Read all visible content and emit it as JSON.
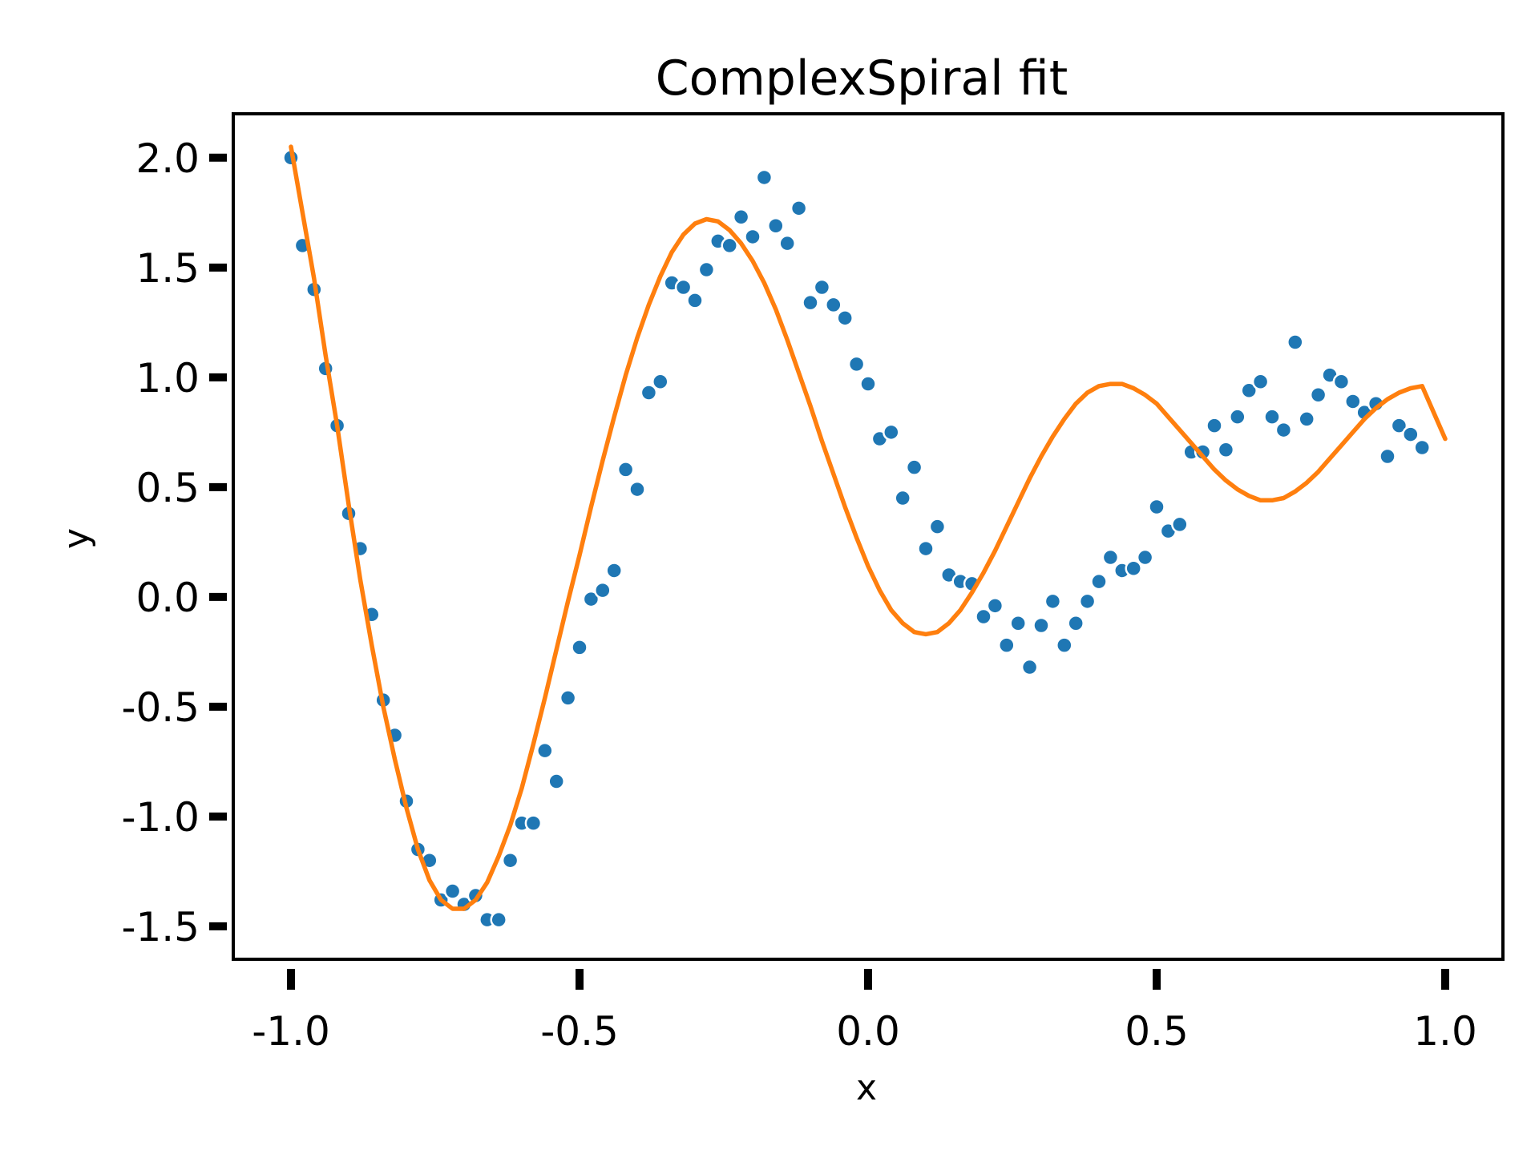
{
  "chart_data": {
    "type": "scatter",
    "title": "ComplexSpiral fit",
    "xlabel": "x",
    "ylabel": "y",
    "xlim": [
      -1.1,
      1.1
    ],
    "ylim": [
      -1.65,
      2.2
    ],
    "grid": false,
    "legend": "none",
    "xticks": [
      -1.0,
      -0.5,
      0.0,
      0.5,
      1.0
    ],
    "xtick_labels": [
      "-1.0",
      "-0.5",
      "0.0",
      "0.5",
      "1.0"
    ],
    "yticks": [
      -1.5,
      -1.0,
      -0.5,
      0.0,
      0.5,
      1.0,
      1.5,
      2.0
    ],
    "ytick_labels": [
      "-1.5",
      "-1.0",
      "-0.5",
      "0.0",
      "0.5",
      "1.0",
      "1.5",
      "2.0"
    ],
    "series": [
      {
        "kind": "scatter",
        "color": "#1f77b4",
        "points": [
          [
            -1.0,
            2.0
          ],
          [
            -0.98,
            1.6
          ],
          [
            -0.96,
            1.4
          ],
          [
            -0.94,
            1.04
          ],
          [
            -0.92,
            0.78
          ],
          [
            -0.9,
            0.38
          ],
          [
            -0.88,
            0.22
          ],
          [
            -0.86,
            -0.08
          ],
          [
            -0.84,
            -0.47
          ],
          [
            -0.82,
            -0.63
          ],
          [
            -0.8,
            -0.93
          ],
          [
            -0.78,
            -1.15
          ],
          [
            -0.76,
            -1.2
          ],
          [
            -0.74,
            -1.38
          ],
          [
            -0.72,
            -1.34
          ],
          [
            -0.7,
            -1.4
          ],
          [
            -0.68,
            -1.36
          ],
          [
            -0.66,
            -1.47
          ],
          [
            -0.64,
            -1.47
          ],
          [
            -0.62,
            -1.2
          ],
          [
            -0.6,
            -1.03
          ],
          [
            -0.58,
            -1.03
          ],
          [
            -0.56,
            -0.7
          ],
          [
            -0.54,
            -0.84
          ],
          [
            -0.52,
            -0.46
          ],
          [
            -0.5,
            -0.23
          ],
          [
            -0.48,
            -0.01
          ],
          [
            -0.46,
            0.03
          ],
          [
            -0.44,
            0.12
          ],
          [
            -0.42,
            0.58
          ],
          [
            -0.4,
            0.49
          ],
          [
            -0.38,
            0.93
          ],
          [
            -0.36,
            0.98
          ],
          [
            -0.34,
            1.43
          ],
          [
            -0.32,
            1.41
          ],
          [
            -0.3,
            1.35
          ],
          [
            -0.28,
            1.49
          ],
          [
            -0.26,
            1.62
          ],
          [
            -0.24,
            1.6
          ],
          [
            -0.22,
            1.73
          ],
          [
            -0.2,
            1.64
          ],
          [
            -0.18,
            1.91
          ],
          [
            -0.16,
            1.69
          ],
          [
            -0.14,
            1.61
          ],
          [
            -0.12,
            1.77
          ],
          [
            -0.1,
            1.34
          ],
          [
            -0.08,
            1.41
          ],
          [
            -0.06,
            1.33
          ],
          [
            -0.04,
            1.27
          ],
          [
            -0.02,
            1.06
          ],
          [
            0.0,
            0.97
          ],
          [
            0.02,
            0.72
          ],
          [
            0.04,
            0.75
          ],
          [
            0.06,
            0.45
          ],
          [
            0.08,
            0.59
          ],
          [
            0.1,
            0.22
          ],
          [
            0.12,
            0.32
          ],
          [
            0.14,
            0.1
          ],
          [
            0.16,
            0.07
          ],
          [
            0.18,
            0.06
          ],
          [
            0.2,
            -0.09
          ],
          [
            0.22,
            -0.04
          ],
          [
            0.24,
            -0.22
          ],
          [
            0.26,
            -0.12
          ],
          [
            0.28,
            -0.32
          ],
          [
            0.3,
            -0.13
          ],
          [
            0.32,
            -0.02
          ],
          [
            0.34,
            -0.22
          ],
          [
            0.36,
            -0.12
          ],
          [
            0.38,
            -0.02
          ],
          [
            0.4,
            0.07
          ],
          [
            0.42,
            0.18
          ],
          [
            0.44,
            0.12
          ],
          [
            0.46,
            0.13
          ],
          [
            0.48,
            0.18
          ],
          [
            0.5,
            0.41
          ],
          [
            0.52,
            0.3
          ],
          [
            0.54,
            0.33
          ],
          [
            0.56,
            0.66
          ],
          [
            0.58,
            0.66
          ],
          [
            0.6,
            0.78
          ],
          [
            0.62,
            0.67
          ],
          [
            0.64,
            0.82
          ],
          [
            0.66,
            0.94
          ],
          [
            0.68,
            0.98
          ],
          [
            0.7,
            0.82
          ],
          [
            0.72,
            0.76
          ],
          [
            0.74,
            1.16
          ],
          [
            0.76,
            0.81
          ],
          [
            0.78,
            0.92
          ],
          [
            0.8,
            1.01
          ],
          [
            0.82,
            0.98
          ],
          [
            0.84,
            0.89
          ],
          [
            0.86,
            0.84
          ],
          [
            0.88,
            0.88
          ],
          [
            0.9,
            0.64
          ],
          [
            0.92,
            0.78
          ],
          [
            0.94,
            0.74
          ],
          [
            0.96,
            0.68
          ]
        ]
      },
      {
        "kind": "line",
        "color": "#ff7f0e",
        "points": [
          [
            -1.0,
            2.05
          ],
          [
            -0.98,
            1.75
          ],
          [
            -0.96,
            1.45
          ],
          [
            -0.94,
            1.1
          ],
          [
            -0.92,
            0.78
          ],
          [
            -0.9,
            0.42
          ],
          [
            -0.88,
            0.08
          ],
          [
            -0.86,
            -0.22
          ],
          [
            -0.84,
            -0.5
          ],
          [
            -0.82,
            -0.74
          ],
          [
            -0.8,
            -0.96
          ],
          [
            -0.78,
            -1.15
          ],
          [
            -0.76,
            -1.29
          ],
          [
            -0.74,
            -1.38
          ],
          [
            -0.72,
            -1.42
          ],
          [
            -0.7,
            -1.42
          ],
          [
            -0.68,
            -1.38
          ],
          [
            -0.66,
            -1.3
          ],
          [
            -0.64,
            -1.18
          ],
          [
            -0.62,
            -1.04
          ],
          [
            -0.6,
            -0.87
          ],
          [
            -0.58,
            -0.67
          ],
          [
            -0.56,
            -0.46
          ],
          [
            -0.54,
            -0.24
          ],
          [
            -0.52,
            -0.02
          ],
          [
            -0.5,
            0.19
          ],
          [
            -0.48,
            0.41
          ],
          [
            -0.46,
            0.62
          ],
          [
            -0.44,
            0.82
          ],
          [
            -0.42,
            1.01
          ],
          [
            -0.4,
            1.18
          ],
          [
            -0.38,
            1.33
          ],
          [
            -0.36,
            1.46
          ],
          [
            -0.34,
            1.57
          ],
          [
            -0.32,
            1.65
          ],
          [
            -0.3,
            1.7
          ],
          [
            -0.28,
            1.72
          ],
          [
            -0.26,
            1.71
          ],
          [
            -0.24,
            1.67
          ],
          [
            -0.22,
            1.61
          ],
          [
            -0.2,
            1.53
          ],
          [
            -0.18,
            1.43
          ],
          [
            -0.16,
            1.31
          ],
          [
            -0.14,
            1.17
          ],
          [
            -0.12,
            1.02
          ],
          [
            -0.1,
            0.87
          ],
          [
            -0.08,
            0.71
          ],
          [
            -0.06,
            0.56
          ],
          [
            -0.04,
            0.41
          ],
          [
            -0.02,
            0.27
          ],
          [
            0.0,
            0.14
          ],
          [
            0.02,
            0.03
          ],
          [
            0.04,
            -0.06
          ],
          [
            0.06,
            -0.12
          ],
          [
            0.08,
            -0.16
          ],
          [
            0.1,
            -0.17
          ],
          [
            0.12,
            -0.16
          ],
          [
            0.14,
            -0.12
          ],
          [
            0.16,
            -0.06
          ],
          [
            0.18,
            0.02
          ],
          [
            0.2,
            0.11
          ],
          [
            0.22,
            0.21
          ],
          [
            0.24,
            0.32
          ],
          [
            0.26,
            0.43
          ],
          [
            0.28,
            0.54
          ],
          [
            0.3,
            0.64
          ],
          [
            0.32,
            0.73
          ],
          [
            0.34,
            0.81
          ],
          [
            0.36,
            0.88
          ],
          [
            0.38,
            0.93
          ],
          [
            0.4,
            0.96
          ],
          [
            0.42,
            0.97
          ],
          [
            0.44,
            0.97
          ],
          [
            0.46,
            0.95
          ],
          [
            0.48,
            0.92
          ],
          [
            0.5,
            0.88
          ],
          [
            0.52,
            0.82
          ],
          [
            0.54,
            0.76
          ],
          [
            0.56,
            0.7
          ],
          [
            0.58,
            0.64
          ],
          [
            0.6,
            0.58
          ],
          [
            0.62,
            0.53
          ],
          [
            0.64,
            0.49
          ],
          [
            0.66,
            0.46
          ],
          [
            0.68,
            0.44
          ],
          [
            0.7,
            0.44
          ],
          [
            0.72,
            0.45
          ],
          [
            0.74,
            0.48
          ],
          [
            0.76,
            0.52
          ],
          [
            0.78,
            0.57
          ],
          [
            0.8,
            0.63
          ],
          [
            0.82,
            0.69
          ],
          [
            0.84,
            0.75
          ],
          [
            0.86,
            0.81
          ],
          [
            0.88,
            0.86
          ],
          [
            0.9,
            0.9
          ],
          [
            0.92,
            0.93
          ],
          [
            0.94,
            0.95
          ],
          [
            0.96,
            0.96
          ],
          [
            1.0,
            0.72
          ]
        ]
      }
    ]
  }
}
